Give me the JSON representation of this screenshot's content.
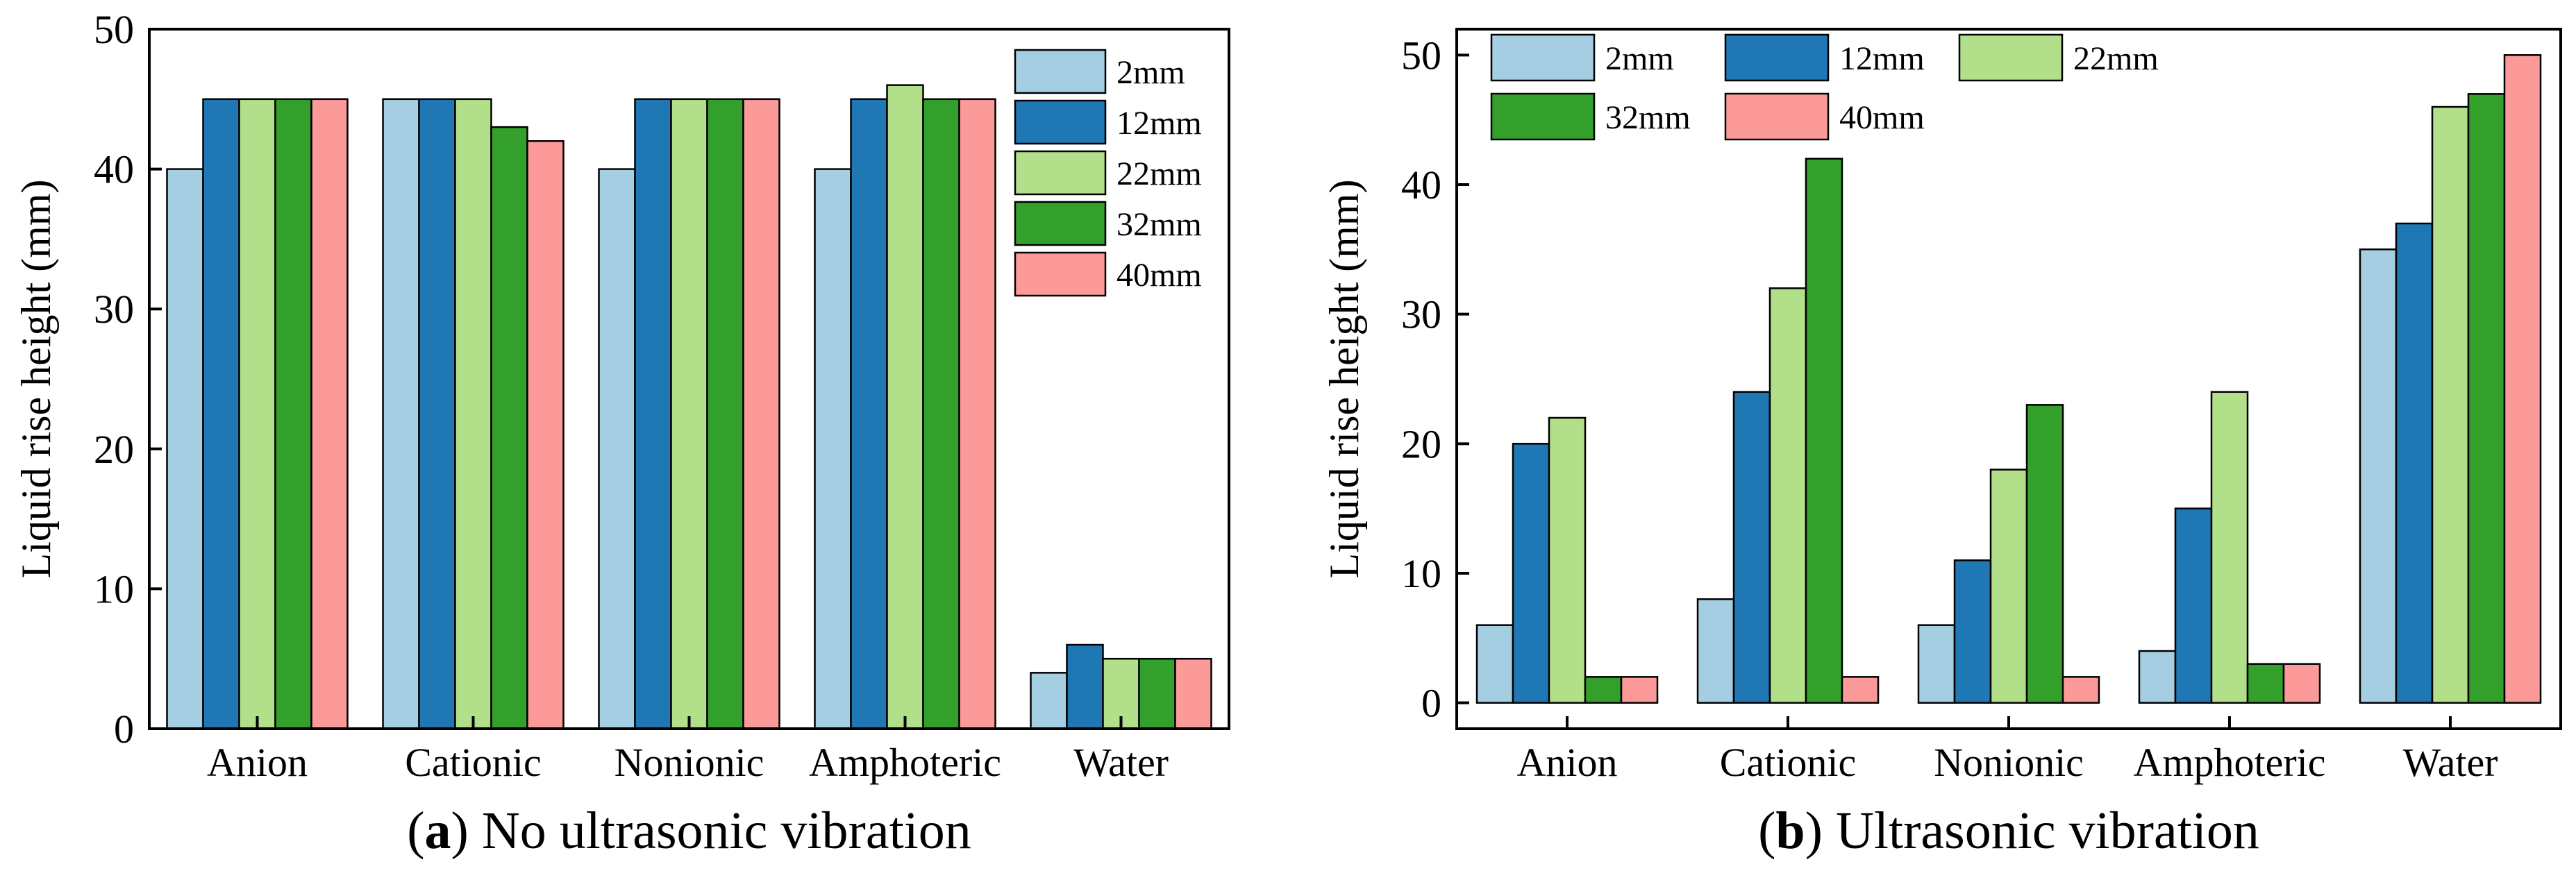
{
  "chart_data": [
    {
      "type": "bar",
      "panel_letter": "a",
      "caption": "No ultrasonic vibration",
      "xlabel": "",
      "ylabel": "Liquid rise height (mm)",
      "ylim": [
        0,
        50
      ],
      "yticks": [
        0,
        10,
        20,
        30,
        40,
        50
      ],
      "categories": [
        "Anion",
        "Cationic",
        "Nonionic",
        "Amphoteric",
        "Water"
      ],
      "legend_position": "top-right",
      "legend_layout": "vertical",
      "series": [
        {
          "name": "2mm",
          "color": "#a6cee3",
          "values": [
            40,
            45,
            40,
            40,
            4
          ]
        },
        {
          "name": "12mm",
          "color": "#1f78b4",
          "values": [
            45,
            45,
            45,
            45,
            6
          ]
        },
        {
          "name": "22mm",
          "color": "#b2df8a",
          "values": [
            45,
            45,
            45,
            46,
            5
          ]
        },
        {
          "name": "32mm",
          "color": "#33a02c",
          "values": [
            45,
            43,
            45,
            45,
            5
          ]
        },
        {
          "name": "40mm",
          "color": "#fb9a99",
          "values": [
            45,
            42,
            45,
            45,
            5
          ]
        }
      ]
    },
    {
      "type": "bar",
      "panel_letter": "b",
      "caption": "Ultrasonic vibration",
      "xlabel": "",
      "ylabel": "Liquid rise height (mm)",
      "ylim": [
        -2,
        52
      ],
      "yticks": [
        0,
        10,
        20,
        30,
        40,
        50
      ],
      "categories": [
        "Anion",
        "Cationic",
        "Nonionic",
        "Amphoteric",
        "Water"
      ],
      "legend_position": "top-left",
      "legend_layout": "grid",
      "series": [
        {
          "name": "2mm",
          "color": "#a6cee3",
          "values": [
            6,
            8,
            6,
            4,
            35
          ]
        },
        {
          "name": "12mm",
          "color": "#1f78b4",
          "values": [
            20,
            24,
            11,
            15,
            37
          ]
        },
        {
          "name": "22mm",
          "color": "#b2df8a",
          "values": [
            22,
            32,
            18,
            24,
            46
          ]
        },
        {
          "name": "32mm",
          "color": "#33a02c",
          "values": [
            2,
            42,
            23,
            3,
            47
          ]
        },
        {
          "name": "40mm",
          "color": "#fb9a99",
          "values": [
            2,
            2,
            2,
            3,
            50
          ]
        }
      ]
    }
  ]
}
